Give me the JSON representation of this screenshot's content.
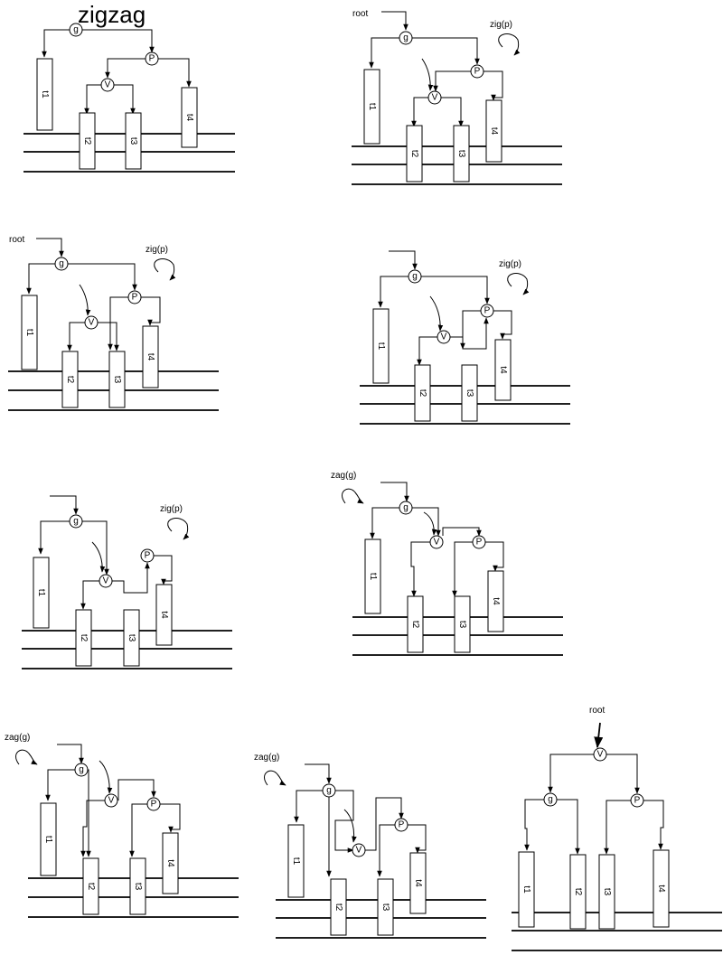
{
  "title": "zigzag",
  "labels": {
    "root": "root",
    "zig_p": "zig(p)",
    "zag_g": "zag(g)",
    "g": "g",
    "p": "P",
    "v": "V",
    "t1": "t1",
    "t2": "t2",
    "t3": "t3",
    "t4": "t4"
  },
  "panels": [
    {
      "id": "step-1",
      "caption": ""
    },
    {
      "id": "step-2",
      "caption": "zig(p)",
      "root_label": "root"
    },
    {
      "id": "step-3",
      "caption": "zig(p)",
      "root_label": "root"
    },
    {
      "id": "step-4",
      "caption": "zig(p)"
    },
    {
      "id": "step-5",
      "caption": "zig(p)"
    },
    {
      "id": "step-6",
      "caption": "zag(g)"
    },
    {
      "id": "step-7",
      "caption": "zag(g)"
    },
    {
      "id": "step-8",
      "caption": "zag(g)"
    },
    {
      "id": "step-9",
      "caption": "",
      "root_label": "root"
    }
  ],
  "colors": {
    "ink": "#000000",
    "background": "#ffffff"
  }
}
